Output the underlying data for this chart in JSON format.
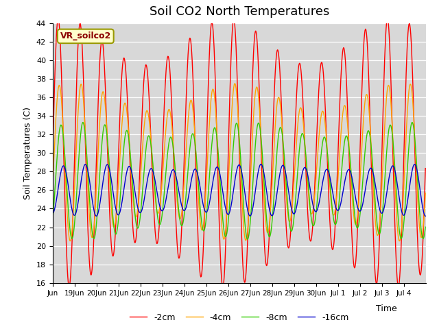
{
  "title": "Soil CO2 North Temperatures",
  "ylabel": "Soil Temperatures (C)",
  "xlabel": "Time",
  "ylim": [
    16,
    44
  ],
  "annotation": "VR_soilco2",
  "colors": {
    "-2cm": "#ff0000",
    "-4cm": "#ffa500",
    "-8cm": "#33cc00",
    "-16cm": "#0000cc"
  },
  "legend_labels": [
    "-2cm",
    "-4cm",
    "-8cm",
    "-16cm"
  ],
  "background_color": "#d8d8d8",
  "plot_bg_color": "#d8d8d8"
}
